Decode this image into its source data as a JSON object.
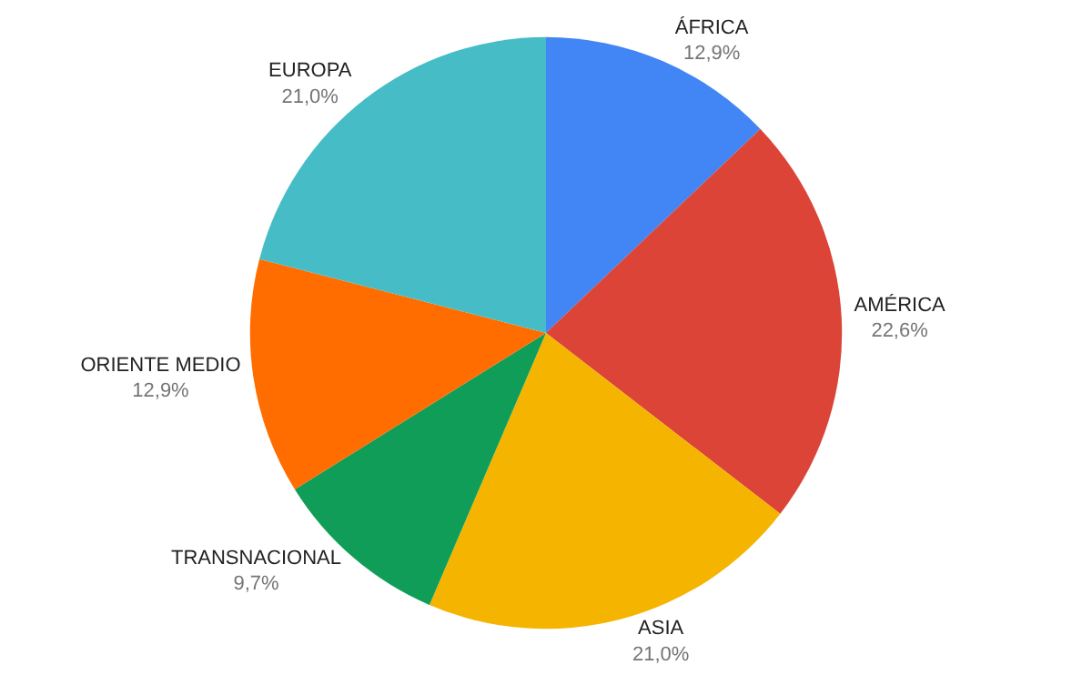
{
  "chart_data": {
    "type": "pie",
    "categories": [
      "ÁFRICA",
      "AMÉRICA",
      "ASIA",
      "TRANSNACIONAL",
      "ORIENTE MEDIO",
      "EUROPA"
    ],
    "values": [
      12.9,
      22.6,
      21.0,
      9.7,
      12.9,
      21.0
    ],
    "value_labels": [
      "12,9%",
      "22,6%",
      "21,0%",
      "9,7%",
      "12,9%",
      "21,0%"
    ],
    "colors": [
      "#4285f4",
      "#db4437",
      "#f4b400",
      "#0f9d58",
      "#ff6d00",
      "#46bdc6"
    ],
    "legend": false
  }
}
